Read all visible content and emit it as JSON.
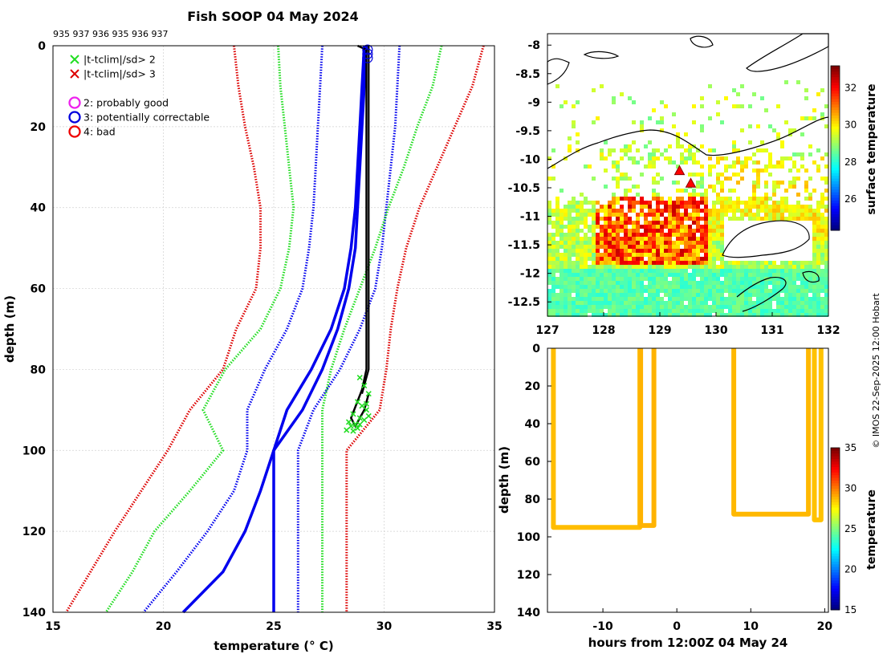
{
  "title": "Fish SOOP 04 May 2024",
  "ids_text": "935 937 936 935 936 937",
  "credit": "© IMOS 22-Sep-2025 12:00 Hobart",
  "chart_data": [
    {
      "type": "line",
      "name": "profile",
      "xlabel": "temperature",
      "xlabel_unit": "(° C)",
      "ylabel": "depth (m)",
      "xlim": [
        15,
        35
      ],
      "ylim": [
        0,
        140
      ],
      "y_inverted": true,
      "xticks": [
        15,
        20,
        25,
        30,
        35
      ],
      "yticks": [
        0,
        20,
        40,
        60,
        80,
        100,
        120,
        140
      ],
      "legend": [
        {
          "label": "|t-tclim|/sd> 2",
          "marker": "x",
          "color": "#22dd22"
        },
        {
          "label": "|t-tclim|/sd> 3",
          "marker": "x",
          "color": "#dd0000"
        },
        {
          "label": "2: probably good",
          "marker": "o",
          "color": "#ee22ee"
        },
        {
          "label": "3: potentially correctable",
          "marker": "o",
          "color": "#0000dd"
        },
        {
          "label": "4: bad",
          "marker": "o",
          "color": "#ee0000"
        }
      ],
      "clim_depth": [
        0,
        10,
        20,
        30,
        40,
        50,
        60,
        70,
        80,
        90,
        100,
        110,
        120,
        130,
        140
      ],
      "series": [
        {
          "name": "clim mean",
          "style": "solid",
          "color": "#0000ee",
          "values": [
            29.1,
            29.0,
            28.9,
            28.8,
            28.7,
            28.5,
            28.2,
            27.6,
            26.7,
            25.6,
            25.0,
            24.4,
            23.7,
            22.7,
            20.9
          ]
        },
        {
          "name": "clim mean alt",
          "style": "solid",
          "color": "#0000ee",
          "values": [
            29.2,
            29.1,
            29.0,
            28.9,
            28.8,
            28.7,
            28.4,
            27.9,
            27.2,
            26.3,
            25.0,
            25.0,
            25.0,
            25.0,
            25.0
          ]
        },
        {
          "name": "-1 sd",
          "style": "dotted",
          "color": "#0000ee",
          "values": [
            27.2,
            27.1,
            27.0,
            26.9,
            26.8,
            26.6,
            26.3,
            25.6,
            24.6,
            23.8,
            23.8,
            23.2,
            22.0,
            20.6,
            19.1
          ]
        },
        {
          "name": "+1 sd",
          "style": "dotted",
          "color": "#0000ee",
          "values": [
            30.7,
            30.6,
            30.5,
            30.3,
            30.1,
            29.9,
            29.6,
            28.9,
            28.0,
            26.8,
            26.1,
            26.1,
            26.1,
            26.1,
            26.1
          ]
        },
        {
          "name": "-2 sd",
          "style": "dotted",
          "color": "#22dd22",
          "values": [
            25.2,
            25.3,
            25.5,
            25.7,
            25.9,
            25.7,
            25.3,
            24.4,
            22.8,
            21.8,
            22.7,
            21.2,
            19.6,
            18.6,
            17.4
          ]
        },
        {
          "name": "+2 sd",
          "style": "dotted",
          "color": "#22dd22",
          "values": [
            32.6,
            32.2,
            31.5,
            30.9,
            30.2,
            29.6,
            28.9,
            28.2,
            27.6,
            27.2,
            27.2,
            27.2,
            27.2,
            27.2,
            27.2
          ]
        },
        {
          "name": "-3 sd",
          "style": "dotted",
          "color": "#dd0000",
          "values": [
            23.2,
            23.4,
            23.7,
            24.1,
            24.4,
            24.4,
            24.2,
            23.3,
            22.7,
            21.2,
            20.2,
            19.0,
            17.8,
            16.7,
            15.6
          ]
        },
        {
          "name": "+3 sd",
          "style": "dotted",
          "color": "#dd0000",
          "values": [
            34.5,
            34.0,
            33.2,
            32.4,
            31.6,
            31.0,
            30.6,
            30.3,
            30.1,
            29.8,
            28.3,
            28.3,
            28.3,
            28.3,
            28.3
          ]
        }
      ],
      "observed": {
        "color": "#000000",
        "temps": [
          28.8,
          29.2,
          29.2,
          29.2,
          29.2,
          29.2,
          29.2,
          29.2,
          29.2,
          29.2,
          29.0,
          28.5,
          28.7,
          29.1,
          29.3
        ],
        "depths": [
          0,
          1,
          10,
          20,
          30,
          40,
          50,
          60,
          70,
          80,
          85,
          92,
          94,
          90,
          86
        ]
      }
    },
    {
      "type": "heatmap",
      "name": "map",
      "colorbar_label": "surface temperature",
      "xlim": [
        127,
        132
      ],
      "ylim": [
        -12.75,
        -7.8
      ],
      "xticks": [
        127,
        128,
        129,
        130,
        131,
        132
      ],
      "yticks": [
        -8,
        -8.5,
        -9,
        -9.5,
        -10,
        -10.5,
        -11,
        -11.5,
        -12,
        -12.5
      ],
      "colorbar_ticks": [
        26,
        28,
        30,
        32
      ],
      "colorbar_range": [
        24.3,
        33.2
      ],
      "track": [
        [
          129.35,
          -10.2
        ],
        [
          129.55,
          -10.42
        ]
      ]
    },
    {
      "type": "scatter",
      "name": "timeseries",
      "xlabel": "hours from 12:00Z 04 May 24",
      "ylabel": "depth (m)",
      "colorbar_label": "temperature",
      "xlim": [
        -17.5,
        20.5
      ],
      "ylim": [
        0,
        140
      ],
      "y_inverted": true,
      "xticks": [
        -10,
        0,
        10,
        20
      ],
      "yticks": [
        0,
        20,
        40,
        60,
        80,
        100,
        120,
        140
      ],
      "colorbar_ticks": [
        15,
        20,
        25,
        30,
        35
      ],
      "colorbar_range": [
        15,
        35
      ],
      "casts": [
        {
          "x0": -16.7,
          "x1": -5.0,
          "max_depth": 95,
          "temp": 28.8
        },
        {
          "x0": -4.9,
          "x1": -3.1,
          "max_depth": 94,
          "temp": 29.0
        },
        {
          "x0": 7.7,
          "x1": 17.8,
          "max_depth": 88,
          "temp": 28.9
        },
        {
          "x0": 18.6,
          "x1": 19.5,
          "max_depth": 91,
          "temp": 28.7
        }
      ]
    }
  ]
}
